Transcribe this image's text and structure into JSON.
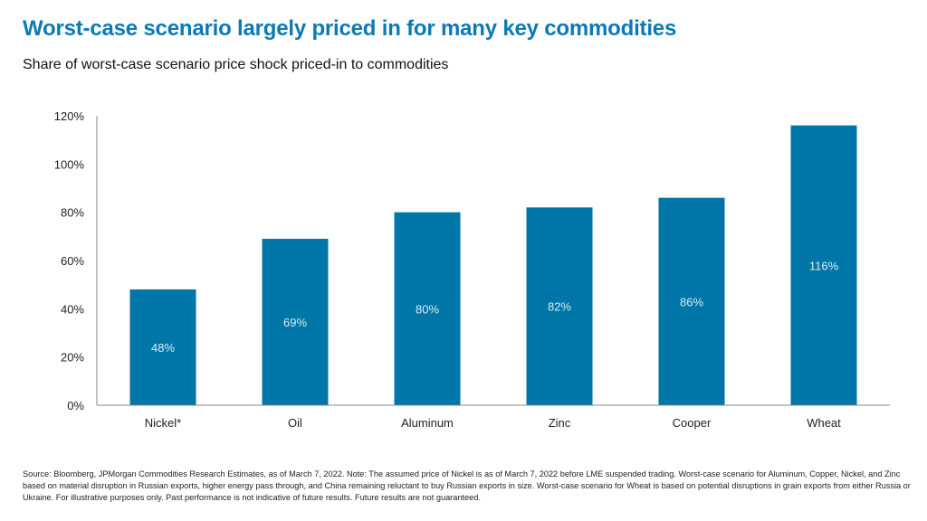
{
  "title": "Worst-case scenario largely priced in for many key commodities",
  "subtitle": "Share of worst-case scenario price shock priced-in to commodities",
  "footnote": "Source: Bloomberg, JPMorgan Commodities Research Estimates, as of March 7, 2022. Note: The assumed price of Nickel is as of March 7, 2022 before LME suspended trading. Worst-case scenario for Aluminum, Copper, Nickel, and Zinc based on material disruption in Russian exports, higher energy pass through, and China remaining reluctant to buy Russian exports in size. Worst-case scenario for Wheat is based on potential disruptions in grain exports from either Russia or Ukraine.  For illustrative purposes only. Past performance is not indicative of future results. Future results are not guaranteed.",
  "chart_data": {
    "type": "bar",
    "categories": [
      "Nickel*",
      "Oil",
      "Aluminum",
      "Zinc",
      "Cooper",
      "Wheat"
    ],
    "values": [
      48,
      69,
      80,
      82,
      86,
      116
    ],
    "data_labels": [
      "48%",
      "69%",
      "80%",
      "82%",
      "86%",
      "116%"
    ],
    "ylim": [
      0,
      120
    ],
    "yticks": [
      0,
      20,
      40,
      60,
      80,
      100,
      120
    ],
    "ytick_labels": [
      "0%",
      "20%",
      "40%",
      "60%",
      "80%",
      "100%",
      "120%"
    ],
    "grid": false,
    "legend": "none",
    "bar_color": "#0076a8",
    "label_color": "#d9ecf5"
  }
}
